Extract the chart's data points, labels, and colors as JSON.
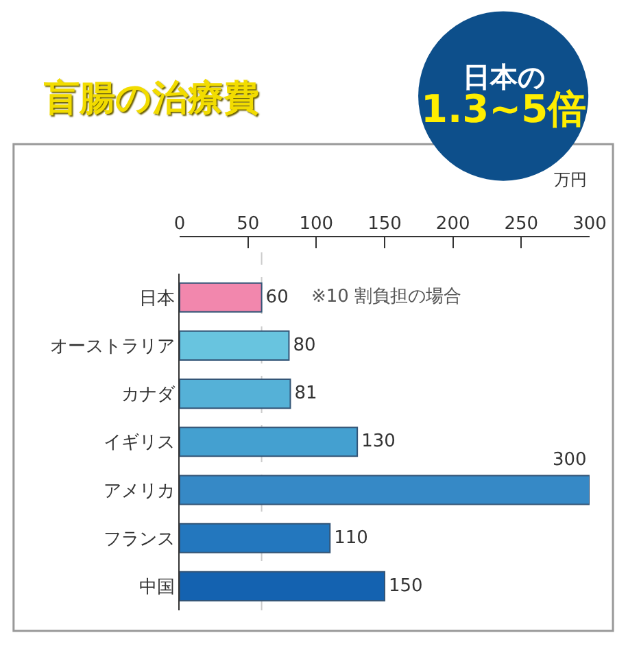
{
  "chart_data": {
    "type": "bar",
    "orientation": "horizontal",
    "title": "盲腸の治療費",
    "xlabel": "万円",
    "categories": [
      "日本",
      "オーストラリア",
      "カナダ",
      "イギリス",
      "アメリカ",
      "フランス",
      "中国"
    ],
    "values": [
      60,
      80,
      81,
      130,
      300,
      110,
      150
    ],
    "colors": [
      "#f287ad",
      "#68c4df",
      "#55b1d7",
      "#44a0d0",
      "#3689c6",
      "#2377be",
      "#1462b0"
    ],
    "xlim": [
      0,
      300
    ],
    "xticks": [
      0,
      50,
      100,
      150,
      200,
      250,
      300
    ],
    "legend": false,
    "data_labels": true,
    "ref_lines": [
      {
        "axis": "x",
        "value": 60,
        "color": "#cccccc",
        "line_style": "dashed"
      }
    ],
    "annotations": [
      {
        "text": "※10 割負担の場合",
        "x": 60,
        "y": "日本"
      },
      "日本の\n1.3~5倍"
    ]
  }
}
